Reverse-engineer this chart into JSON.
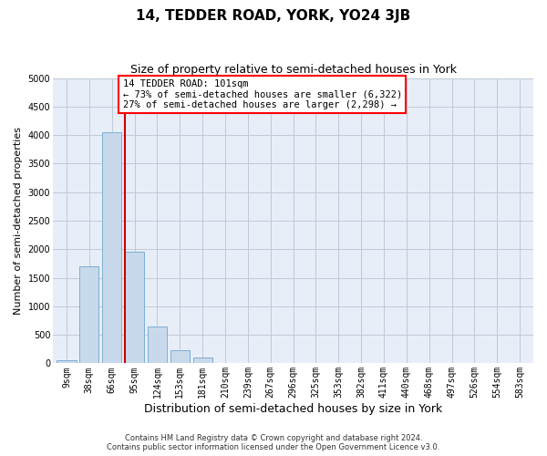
{
  "title": "14, TEDDER ROAD, YORK, YO24 3JB",
  "subtitle": "Size of property relative to semi-detached houses in York",
  "xlabel": "Distribution of semi-detached houses by size in York",
  "ylabel": "Number of semi-detached properties",
  "footer_line1": "Contains HM Land Registry data © Crown copyright and database right 2024.",
  "footer_line2": "Contains public sector information licensed under the Open Government Licence v3.0.",
  "bar_labels": [
    "9sqm",
    "38sqm",
    "66sqm",
    "95sqm",
    "124sqm",
    "153sqm",
    "181sqm",
    "210sqm",
    "239sqm",
    "267sqm",
    "296sqm",
    "325sqm",
    "353sqm",
    "382sqm",
    "411sqm",
    "440sqm",
    "468sqm",
    "497sqm",
    "526sqm",
    "554sqm",
    "583sqm"
  ],
  "bar_values": [
    50,
    1700,
    4050,
    1950,
    650,
    230,
    100,
    0,
    0,
    0,
    0,
    0,
    0,
    0,
    0,
    0,
    0,
    0,
    0,
    0,
    0
  ],
  "bar_color": "#c9d9ec",
  "bar_edge_color": "#7bafd4",
  "annotation_text": "14 TEDDER ROAD: 101sqm\n← 73% of semi-detached houses are smaller (6,322)\n27% of semi-detached houses are larger (2,298) →",
  "annotation_box_color": "white",
  "annotation_box_edge_color": "red",
  "vline_x_index": 3,
  "vline_color": "#cc0000",
  "ylim": [
    0,
    5000
  ],
  "yticks": [
    0,
    500,
    1000,
    1500,
    2000,
    2500,
    3000,
    3500,
    4000,
    4500,
    5000
  ],
  "grid_color": "#c0c8d8",
  "background_color": "#e8eef8",
  "title_fontsize": 11,
  "subtitle_fontsize": 9,
  "ylabel_fontsize": 8,
  "xlabel_fontsize": 9,
  "tick_fontsize": 7,
  "annotation_fontsize": 7.5,
  "footer_fontsize": 6
}
